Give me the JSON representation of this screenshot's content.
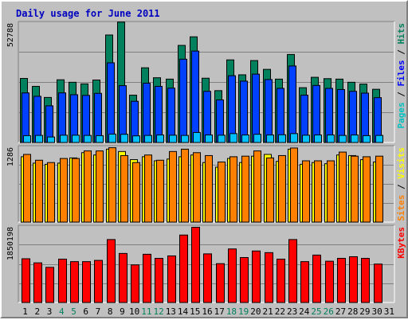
{
  "chart_data": {
    "type": "bar",
    "title": "Daily usage for June 2011",
    "days": [
      "1",
      "2",
      "3",
      "4",
      "5",
      "6",
      "7",
      "8",
      "9",
      "10",
      "11",
      "12",
      "13",
      "14",
      "15",
      "16",
      "17",
      "18",
      "19",
      "20",
      "21",
      "22",
      "23",
      "24",
      "25",
      "26",
      "27",
      "28",
      "29",
      "30",
      "31"
    ],
    "weekend_days": [
      "4",
      "5",
      "11",
      "12",
      "18",
      "19",
      "25",
      "26"
    ],
    "panels": [
      {
        "id": "hits-files-pages",
        "max_label": "52788",
        "ymax": 52788,
        "labels": [
          {
            "text": "Pages",
            "color": "#00c0c0"
          },
          {
            "text": " / ",
            "color": "#000000"
          },
          {
            "text": "Files",
            "color": "#0000ff"
          },
          {
            "text": " / ",
            "color": "#000000"
          },
          {
            "text": "Hits",
            "color": "#00805c"
          }
        ],
        "series": [
          {
            "name": "Hits",
            "color": "#00805c",
            "values": [
              28500,
              25000,
              20100,
              27900,
              26800,
              26100,
              27800,
              47700,
              53400,
              21100,
              33200,
              28800,
              28200,
              43100,
              46900,
              28600,
              23100,
              36700,
              30100,
              36400,
              32500,
              28200,
              39100,
              24400,
              29000,
              28400,
              28200,
              26800,
              26000,
              23700,
              0
            ]
          },
          {
            "name": "Files",
            "color": "#0040ff",
            "values": [
              22100,
              20600,
              16400,
              22100,
              21300,
              21000,
              21900,
              35400,
              25300,
              18400,
              26400,
              25000,
              24200,
              37000,
              40600,
              22800,
              19000,
              29700,
              27300,
              30400,
              28000,
              24100,
              34000,
              21100,
              25400,
              24100,
              23600,
              22800,
              22000,
              20000,
              0
            ]
          },
          {
            "name": "Pages",
            "color": "#00c0ff",
            "values": [
              3200,
              3300,
              2600,
              3400,
              3400,
              3300,
              3200,
              3900,
              3800,
              3100,
              3300,
              3500,
              3400,
              3300,
              4600,
              3500,
              3400,
              4100,
              3500,
              3800,
              3500,
              3600,
              4100,
              3400,
              3500,
              3500,
              3300,
              3500,
              3200,
              3300,
              0
            ]
          }
        ]
      },
      {
        "id": "visits-sites",
        "max_label": "1286",
        "ymax": 1286,
        "labels": [
          {
            "text": "Sites",
            "color": "#ff8000"
          },
          {
            "text": " / ",
            "color": "#000000"
          },
          {
            "text": "Visits",
            "color": "#ffff00"
          }
        ],
        "series": [
          {
            "name": "Visits",
            "color": "#ffff00",
            "values": [
              1130,
              1020,
              1000,
              1020,
              1110,
              1200,
              1160,
              1260,
              1220,
              1080,
              1130,
              1060,
              1090,
              1130,
              1160,
              1030,
              950,
              1100,
              1030,
              1140,
              1170,
              1050,
              1260,
              1000,
              1030,
              1010,
              1160,
              1150,
              1080,
              1040,
              0
            ]
          },
          {
            "name": "Sites",
            "color": "#ff8000",
            "values": [
              1170,
              1070,
              1030,
              1100,
              1100,
              1230,
              1230,
              1285,
              1150,
              1030,
              1160,
              1070,
              1220,
              1260,
              1200,
              1150,
              1040,
              1130,
              1140,
              1230,
              1110,
              1150,
              1280,
              1060,
              1060,
              1060,
              1210,
              1140,
              1130,
              1140,
              0
            ]
          }
        ]
      },
      {
        "id": "kbytes",
        "max_label": "1850198",
        "ymax": 1850198,
        "labels": [
          {
            "text": "KBytes",
            "color": "#ff0000"
          }
        ],
        "series": [
          {
            "name": "KBytes",
            "color": "#ff0000",
            "values": [
              1080000,
              980000,
              870000,
              1070000,
              1010000,
              1010000,
              1040000,
              1550000,
              1210000,
              930000,
              1190000,
              1090000,
              1150000,
              1660000,
              1850000,
              1200000,
              960000,
              1320000,
              1110000,
              1270000,
              1230000,
              1070000,
              1550000,
              1010000,
              1170000,
              1020000,
              1090000,
              1130000,
              1090000,
              950000,
              0
            ]
          }
        ]
      }
    ]
  }
}
